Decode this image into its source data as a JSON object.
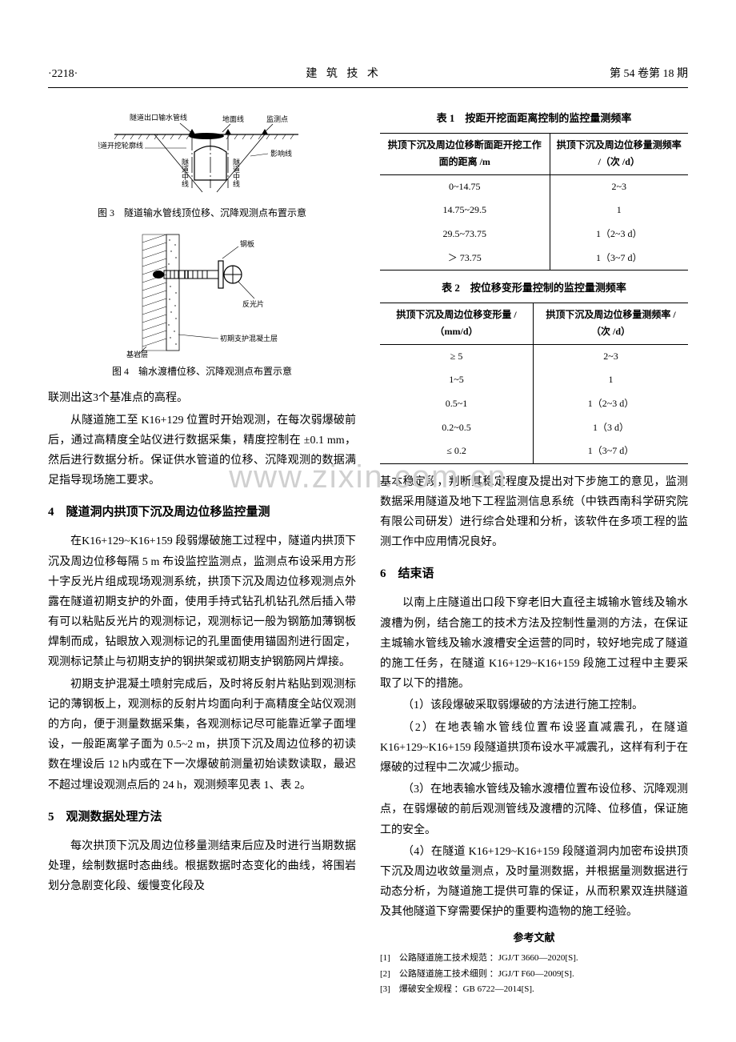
{
  "header": {
    "page_num": "·2218·",
    "journal_title": "建 筑 技 术",
    "issue": "第 54 卷第 18 期"
  },
  "watermark": "www.zixin.com.cn",
  "figures": {
    "fig3": {
      "labels": {
        "pipe_line": "隧道出口输水管线",
        "ground_line": "地面线",
        "monitor_point": "监测点",
        "excavation_outline": "隧道开挖轮廓线",
        "tunnel_center": "隧道中线",
        "influence_line": "影响线"
      },
      "caption": "图 3　隧道输水管线顶位移、沉降观测点布置示意",
      "colors": {
        "stroke": "#000000",
        "fill_hatch": "#000000",
        "bg": "#ffffff"
      }
    },
    "fig4": {
      "labels": {
        "steel_plate": "钢板",
        "reflector": "反光片",
        "concrete_layer": "初期支护混凝土层",
        "rock_layer": "基岩层"
      },
      "caption": "图 4　输水渡槽位移、沉降观测点布置示意",
      "colors": {
        "stroke": "#000000",
        "hatch": "#000000",
        "bg": "#ffffff",
        "fill": "#cccccc"
      }
    }
  },
  "left_col": {
    "p1": "联测出这3个基准点的高程。",
    "p2": "从隧道施工至 K16+129 位置时开始观测，在每次弱爆破前后，通过高精度全站仪进行数据采集，精度控制在 ±0.1 mm，然后进行数据分析。保证供水管道的位移、沉降观测的数据满足指导现场施工要求。",
    "s4_title": "4　隧道洞内拱顶下沉及周边位移监控量测",
    "p3": "在K16+129~K16+159 段弱爆破施工过程中，隧道内拱顶下沉及周边位移每隔 5 m 布设监控监测点，监测点布设采用方形十字反光片组成现场观测系统，拱顶下沉及周边位移观测点外露在隧道初期支护的外面，使用手持式钻孔机钻孔然后插入带有可以粘贴反光片的观测标记，观测标记一般为钢筋加薄钢板焊制而成，钻眼放入观测标记的孔里面使用锚固剂进行固定，观测标记禁止与初期支护的钢拱架或初期支护钢筋网片焊接。",
    "p4": "初期支护混凝土喷射完成后，及时将反射片粘贴到观测标记的薄钢板上，观测标的反射片均面向利于高精度全站仪观测的方向，便于测量数据采集，各观测标记尽可能靠近掌子面埋设，一般距离掌子面为 0.5~2 m，拱顶下沉及周边位移的初读数在埋设后 12 h内或在下一次爆破前测量初始读数读取，最迟不超过埋设观测点后的 24 h，观测频率见表 1、表 2。",
    "s5_title": "5　观测数据处理方法",
    "p5": "每次拱顶下沉及周边位移量测结束后应及时进行当期数据处理，绘制数据时态曲线。根据数据时态变化的曲线，将围岩划分急剧变化段、缓慢变化段及"
  },
  "tables": {
    "t1": {
      "title": "表 1　按距开挖面距离控制的监控量测频率",
      "headers": [
        "拱顶下沉及周边位移断面距开挖工作面的距离 /m",
        "拱顶下沉及周边位移量测频率 /（次 /d）"
      ],
      "rows": [
        [
          "0~14.75",
          "2~3"
        ],
        [
          "14.75~29.5",
          "1"
        ],
        [
          "29.5~73.75",
          "1（2~3 d）"
        ],
        [
          "＞ 73.75",
          "1（3~7 d）"
        ]
      ]
    },
    "t2": {
      "title": "表 2　按位移变形量控制的监控量测频率",
      "headers": [
        "拱顶下沉及周边位移变形量 /（mm/d）",
        "拱顶下沉及周边位移量测频率 /（次 /d）"
      ],
      "rows": [
        [
          "≥ 5",
          "2~3"
        ],
        [
          "1~5",
          "1"
        ],
        [
          "0.5~1",
          "1（2~3 d）"
        ],
        [
          "0.2~0.5",
          "1（3 d）"
        ],
        [
          "≤ 0.2",
          "1（3~7 d）"
        ]
      ]
    }
  },
  "right_col": {
    "p1": "基本稳定段，判断其稳定程度及提出对下步施工的意见，监测数据采用隧道及地下工程监测信息系统（中铁西南科学研究院有限公司研发）进行综合处理和分析，该软件在多项工程的监测工作中应用情况良好。",
    "s6_title": "6　结束语",
    "p2": "以南上庄隧道出口段下穿老旧大直径主城输水管线及输水渡槽为例，结合施工的技术方法及控制性量测的方法，在保证主城输水管线及输水渡槽安全运营的同时，较好地完成了隧道的施工任务，在隧道 K16+129~K16+159 段施工过程中主要采取了以下的措施。",
    "p3": "（1）该段爆破采取弱爆破的方法进行施工控制。",
    "p4": "（2）在地表输水管线位置布设竖直减震孔，在隧道 K16+129~K16+159 段隧道拱顶布设水平减震孔，这样有利于在爆破的过程中二次减少振动。",
    "p5": "（3）在地表输水管线及输水渡槽位置布设位移、沉降观测点，在弱爆破的前后观测管线及渡槽的沉降、位移值，保证施工的安全。",
    "p6": "（4）在隧道 K16+129~K16+159 段隧道洞内加密布设拱顶下沉及周边收敛量测点，及时量测数据，并根据量测数据进行动态分析，为隧道施工提供可靠的保证，从而积累双连拱隧道及其他隧道下穿需要保护的重要构造物的施工经验。"
  },
  "references": {
    "title": "参考文献",
    "items": [
      "[1]　公路隧道施工技术规范 ：JGJ/T 3660—2020[S].",
      "[2]　公路隧道施工技术细则 ：JGJ/T F60—2009[S].",
      "[3]　爆破安全规程 ：GB 6722—2014[S]."
    ]
  }
}
